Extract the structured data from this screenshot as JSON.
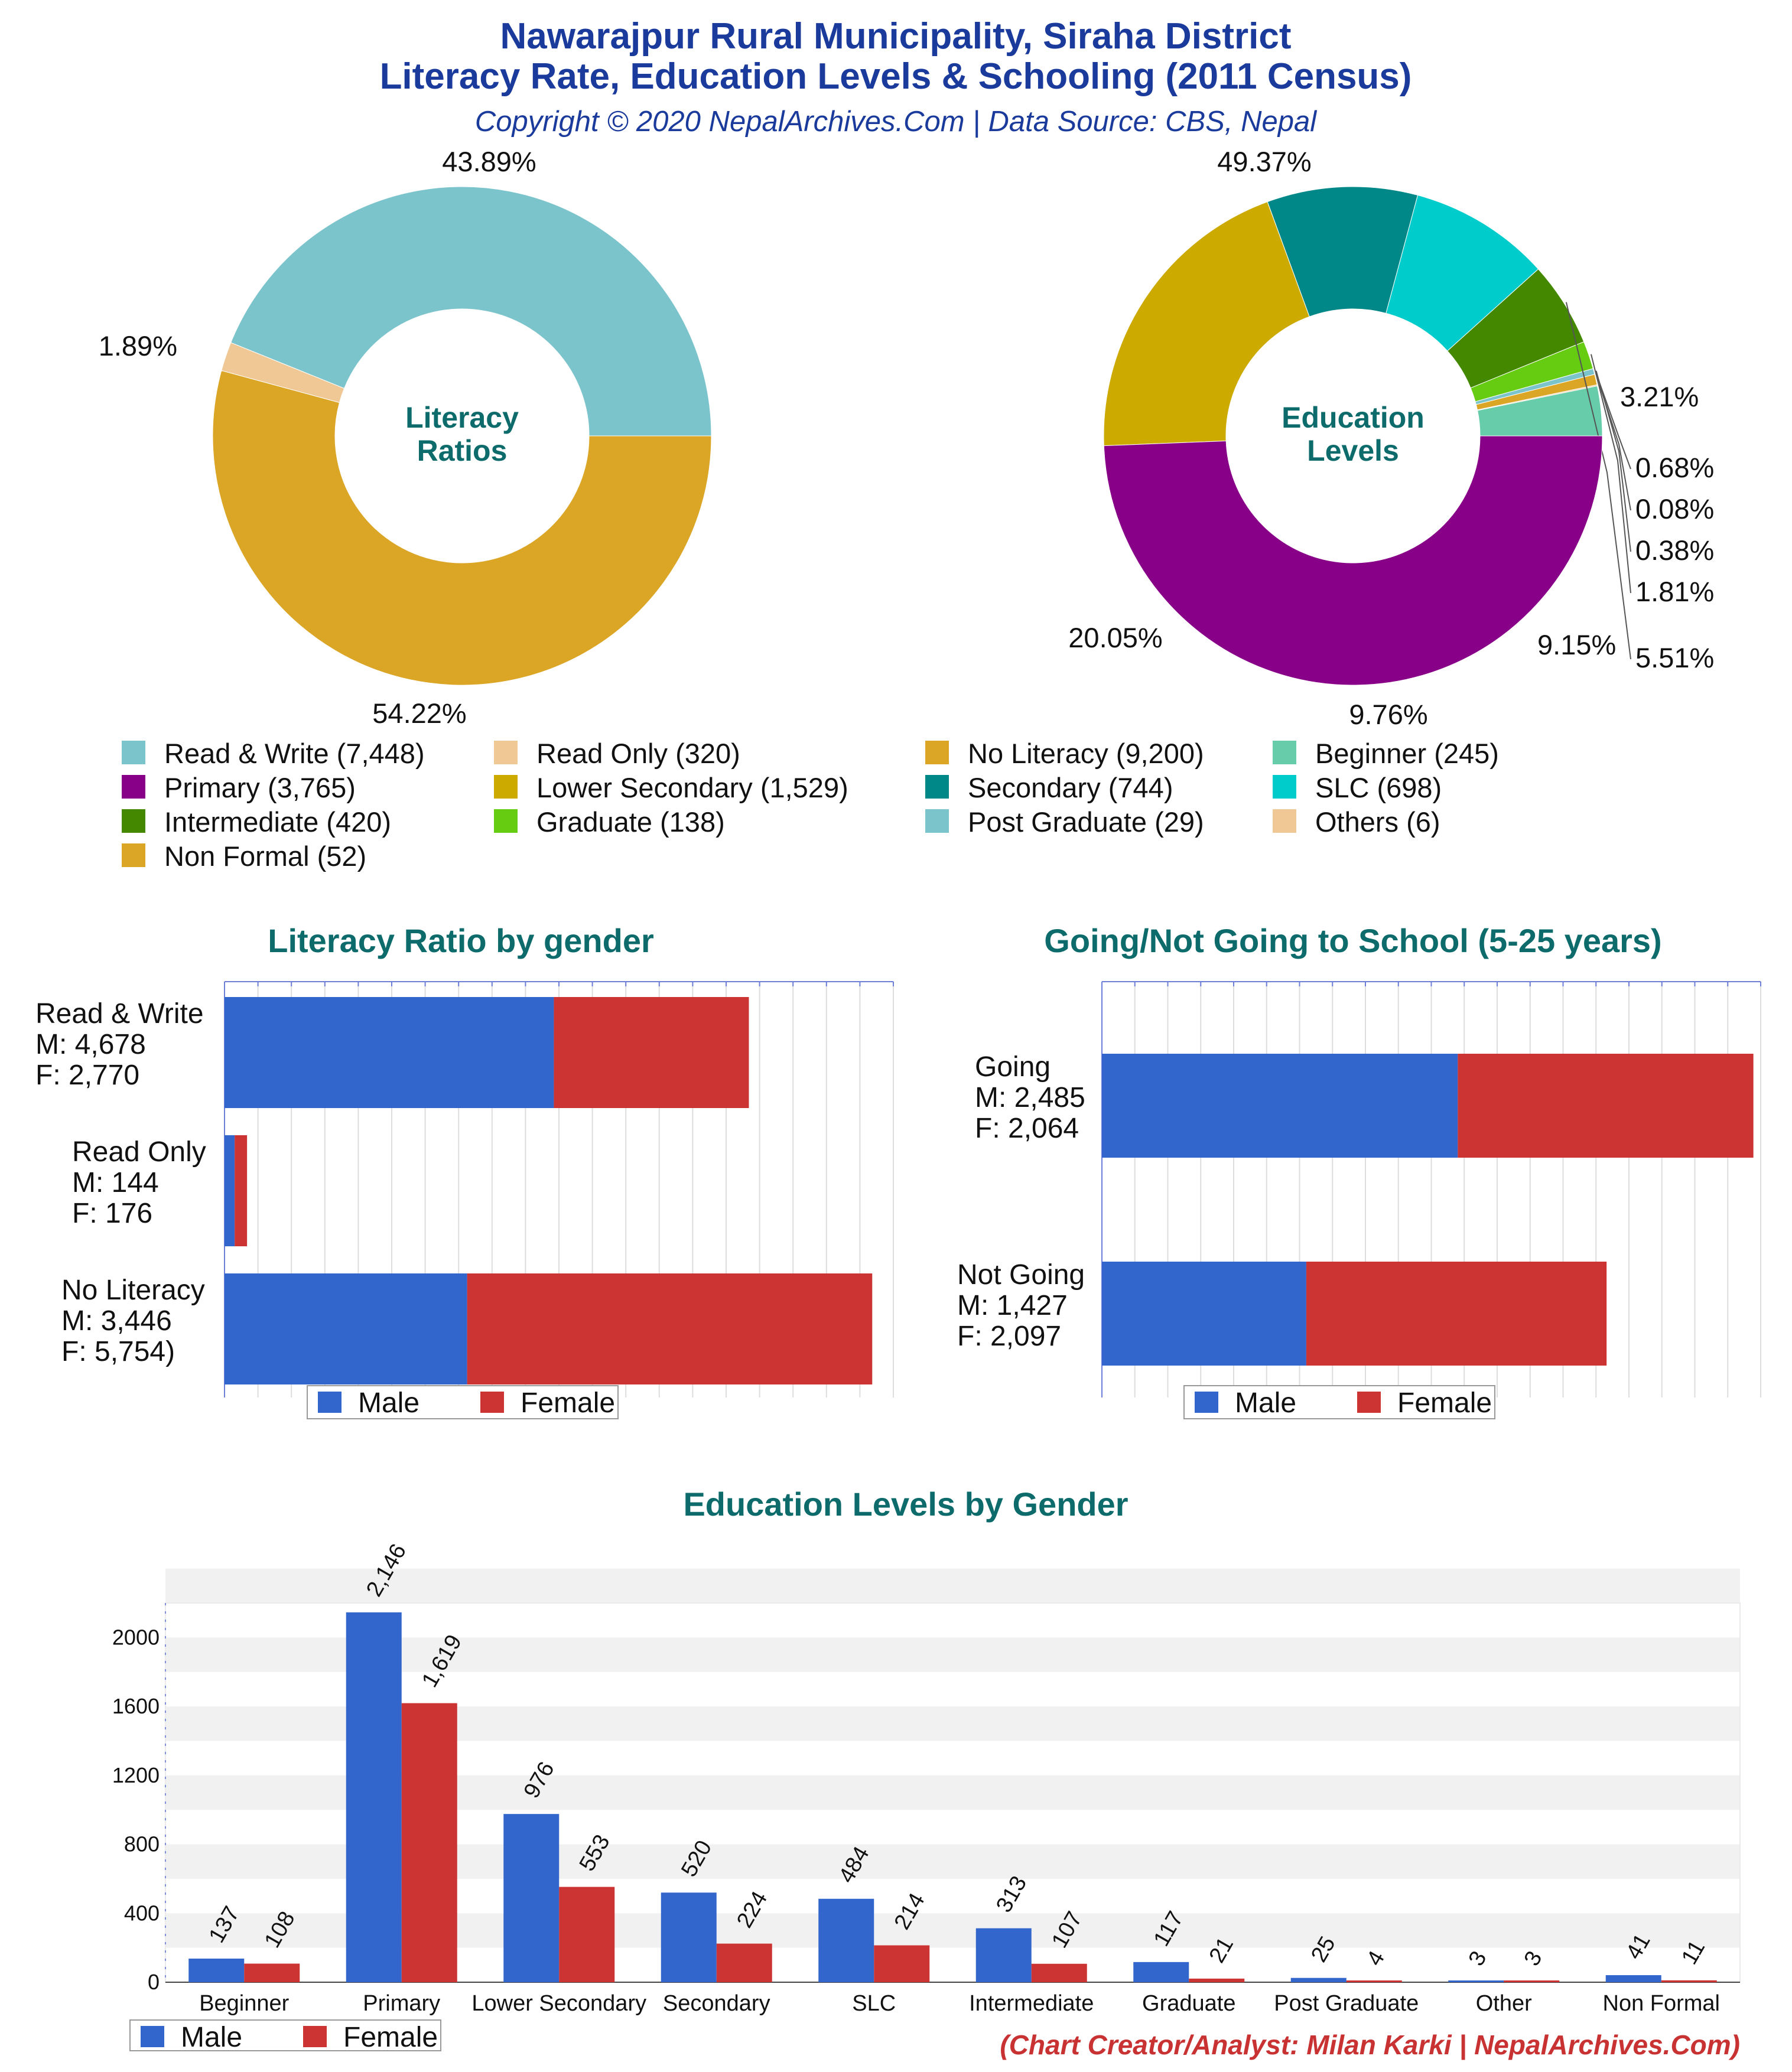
{
  "header": {
    "title_line1": "Nawarajpur Rural Municipality, Siraha District",
    "title_line2": "Literacy Rate, Education Levels & Schooling (2011 Census)",
    "copyright": "Copyright © 2020 NepalArchives.Com | Data Source: CBS, Nepal"
  },
  "colors": {
    "male": "#3366cc",
    "female": "#cc3333",
    "title": "#1a3a9c",
    "section": "#0d6b6b"
  },
  "chart_data": [
    {
      "type": "pie",
      "name": "literacy-ratios",
      "center_label": [
        "Literacy",
        "Ratios"
      ],
      "slices": [
        {
          "label": "Read & Write",
          "value": 7448,
          "percent_label": "43.89%",
          "color": "#7bc4cc"
        },
        {
          "label": "Read Only",
          "value": 320,
          "percent_label": "1.89%",
          "color": "#f0c896"
        },
        {
          "label": "No Literacy",
          "value": 9200,
          "percent_label": "54.22%",
          "color": "#dba526"
        }
      ]
    },
    {
      "type": "pie",
      "name": "education-levels",
      "center_label": [
        "Education",
        "Levels"
      ],
      "slices": [
        {
          "label": "Beginner",
          "value": 245,
          "percent_label": "3.21%",
          "color": "#66ccaa"
        },
        {
          "label": "Others",
          "value": 6,
          "percent_label": "0.08%",
          "color": "#f0c896"
        },
        {
          "label": "Non Formal",
          "value": 52,
          "percent_label": "0.68%",
          "color": "#dba526"
        },
        {
          "label": "Post Graduate",
          "value": 29,
          "percent_label": "0.38%",
          "color": "#7bc4cc"
        },
        {
          "label": "Graduate",
          "value": 138,
          "percent_label": "1.81%",
          "color": "#66cc11"
        },
        {
          "label": "Intermediate",
          "value": 420,
          "percent_label": "5.51%",
          "color": "#448800"
        },
        {
          "label": "SLC",
          "value": 698,
          "percent_label": "9.15%",
          "color": "#00cccc"
        },
        {
          "label": "Secondary",
          "value": 744,
          "percent_label": "9.76%",
          "color": "#008888"
        },
        {
          "label": "Lower Secondary",
          "value": 1529,
          "percent_label": "20.05%",
          "color": "#ccaa00"
        },
        {
          "label": "Primary",
          "value": 3765,
          "percent_label": "49.37%",
          "color": "#880088"
        }
      ]
    },
    {
      "type": "bar",
      "name": "literacy-by-gender",
      "orientation": "horizontal",
      "stacked": true,
      "title": "Literacy Ratio by gender",
      "categories": [
        "Read & Write",
        "Read Only",
        "No Literacy"
      ],
      "category_labels": [
        [
          "Read & Write",
          "M: 4,678",
          "F: 2,770"
        ],
        [
          "Read Only",
          "M: 144",
          "F: 176"
        ],
        [
          "No Literacy",
          "M: 3,446",
          "F: 5,754)"
        ]
      ],
      "series": [
        {
          "name": "Male",
          "values": [
            4678,
            144,
            3446
          ]
        },
        {
          "name": "Female",
          "values": [
            2770,
            176,
            5754
          ]
        }
      ],
      "xlim": [
        0,
        9500
      ],
      "grid": true,
      "legend": "bottom"
    },
    {
      "type": "bar",
      "name": "school-going",
      "orientation": "horizontal",
      "stacked": true,
      "title": "Going/Not Going to School (5-25 years)",
      "categories": [
        "Going",
        "Not Going"
      ],
      "category_labels": [
        [
          "Going",
          "M: 2,485",
          "F: 2,064"
        ],
        [
          "Not Going",
          "M: 1,427",
          "F: 2,097"
        ]
      ],
      "series": [
        {
          "name": "Male",
          "values": [
            2485,
            1427
          ]
        },
        {
          "name": "Female",
          "values": [
            2064,
            2097
          ]
        }
      ],
      "xlim": [
        0,
        4600
      ],
      "grid": true,
      "legend": "bottom"
    },
    {
      "type": "bar",
      "name": "education-by-gender",
      "orientation": "vertical",
      "stacked": false,
      "title": "Education Levels by Gender",
      "categories": [
        "Beginner",
        "Primary",
        "Lower Secondary",
        "Secondary",
        "SLC",
        "Intermediate",
        "Graduate",
        "Post Graduate",
        "Other",
        "Non Formal"
      ],
      "series": [
        {
          "name": "Male",
          "values": [
            137,
            2146,
            976,
            520,
            484,
            313,
            117,
            25,
            3,
            41
          ],
          "labels": [
            "137",
            "2,146",
            "976",
            "520",
            "484",
            "313",
            "117",
            "25",
            "3",
            "41"
          ]
        },
        {
          "name": "Female",
          "values": [
            108,
            1619,
            553,
            224,
            214,
            107,
            21,
            4,
            3,
            11
          ],
          "labels": [
            "108",
            "1,619",
            "553",
            "224",
            "214",
            "107",
            "21",
            "4",
            "3",
            "11"
          ]
        }
      ],
      "yticks": [
        "0",
        "400",
        "800",
        "1200",
        "1600",
        "2000"
      ],
      "ylim": [
        0,
        2200
      ],
      "grid": true,
      "legend": "bottom-left"
    }
  ],
  "legend_items": [
    {
      "label": "Read & Write (7,448)",
      "color": "#7bc4cc"
    },
    {
      "label": "Read Only (320)",
      "color": "#f0c896"
    },
    {
      "label": "No Literacy (9,200)",
      "color": "#dba526"
    },
    {
      "label": "Beginner (245)",
      "color": "#66ccaa"
    },
    {
      "label": "Primary (3,765)",
      "color": "#880088"
    },
    {
      "label": "Lower Secondary (1,529)",
      "color": "#ccaa00"
    },
    {
      "label": "Secondary (744)",
      "color": "#008888"
    },
    {
      "label": "SLC (698)",
      "color": "#00cccc"
    },
    {
      "label": "Intermediate (420)",
      "color": "#448800"
    },
    {
      "label": "Graduate (138)",
      "color": "#66cc11"
    },
    {
      "label": "Post Graduate (29)",
      "color": "#7bc4cc"
    },
    {
      "label": "Others (6)",
      "color": "#f0c896"
    },
    {
      "label": "Non Formal (52)",
      "color": "#dba526"
    }
  ],
  "legend_gender": {
    "male": "Male",
    "female": "Female"
  },
  "credit": "(Chart Creator/Analyst: Milan Karki | NepalArchives.Com)"
}
